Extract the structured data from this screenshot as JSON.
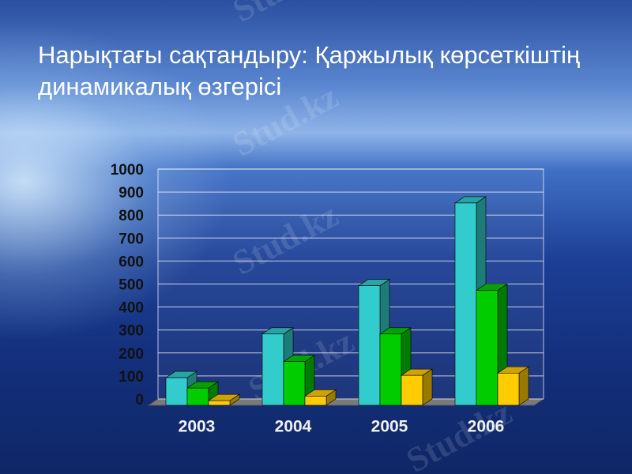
{
  "title": "Нарықтағы сақтандыру: Қаржылық көрсеткіштің динамикалық өзгерісі",
  "watermark": "Stud.kz",
  "chart_data": {
    "type": "bar3d",
    "categories": [
      "2003",
      "2004",
      "2005",
      "2006"
    ],
    "series": [
      {
        "color": "#33cccc",
        "values": [
          120,
          310,
          520,
          880
        ]
      },
      {
        "color": "#00cc00",
        "values": [
          75,
          190,
          310,
          500
        ]
      },
      {
        "color": "#ffcc00",
        "values": [
          20,
          40,
          130,
          140
        ]
      }
    ],
    "ylim": [
      0,
      1000
    ],
    "yticks": [
      0,
      100,
      200,
      300,
      400,
      500,
      600,
      700,
      800,
      900,
      1000
    ],
    "grid": true
  }
}
